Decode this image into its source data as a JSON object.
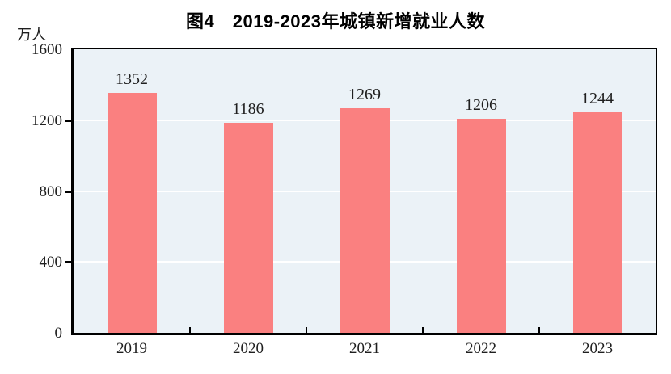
{
  "title": "图4　2019-2023年城镇新增就业人数",
  "y_axis": {
    "unit": "万人",
    "ticks": [
      0,
      400,
      800,
      1200,
      1600
    ],
    "max": 1600
  },
  "chart_data": {
    "type": "bar",
    "categories": [
      "2019",
      "2020",
      "2021",
      "2022",
      "2023"
    ],
    "values": [
      1352,
      1186,
      1269,
      1206,
      1244
    ],
    "title": "图4　2019-2023年城镇新增就业人数",
    "xlabel": "",
    "ylabel": "万人",
    "ylim": [
      0,
      1600
    ],
    "grid": true,
    "legend_position": "none",
    "colors": {
      "bar_fill": "#FA8080",
      "plot_background": "#EBF2F7",
      "gridline": "#FFFFFF",
      "axis": "#000000",
      "label_text": "#1F1F1F",
      "title_text": "#000000"
    }
  }
}
